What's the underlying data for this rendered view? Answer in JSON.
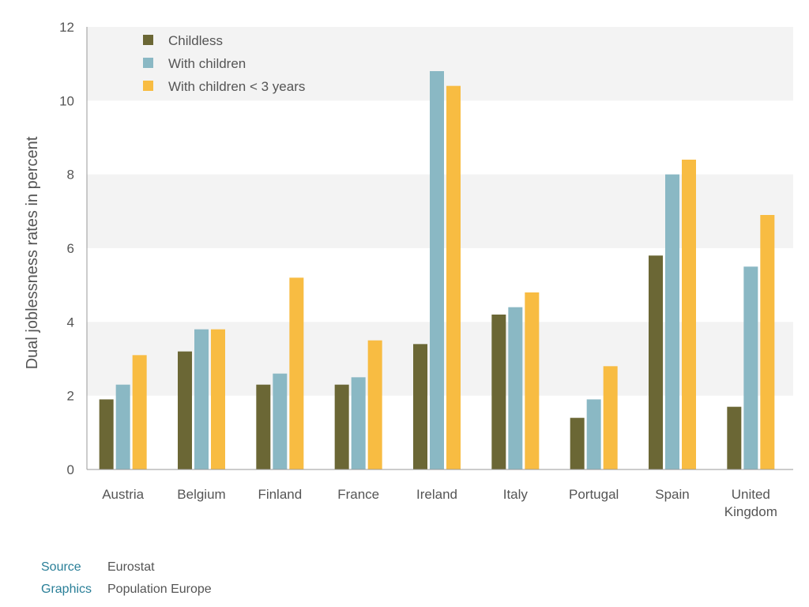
{
  "chart_data": {
    "type": "bar",
    "ylabel": "Dual joblessness rates in percent",
    "xlabel": "",
    "ylim": [
      0,
      12
    ],
    "yticks": [
      0,
      2,
      4,
      6,
      8,
      10,
      12
    ],
    "grid": "alternating horizontal bands",
    "legend_position": "top-left",
    "categories": [
      [
        "Austria"
      ],
      [
        "Belgium"
      ],
      [
        "Finland"
      ],
      [
        "France"
      ],
      [
        "Ireland"
      ],
      [
        "Italy"
      ],
      [
        "Portugal"
      ],
      [
        "Spain"
      ],
      [
        "United",
        "Kingdom"
      ]
    ],
    "series": [
      {
        "name": "Childless",
        "color": "#6b6735",
        "values": [
          1.9,
          3.2,
          2.3,
          2.3,
          3.4,
          4.2,
          1.4,
          5.8,
          1.7
        ]
      },
      {
        "name": "With children",
        "color": "#8ab8c4",
        "values": [
          2.3,
          3.8,
          2.6,
          2.5,
          10.8,
          4.4,
          1.9,
          8.0,
          5.5
        ]
      },
      {
        "name": "With children < 3 years",
        "color": "#f8bc42",
        "values": [
          3.1,
          3.8,
          5.2,
          3.5,
          10.4,
          4.8,
          2.8,
          8.4,
          6.9
        ]
      }
    ]
  },
  "footer": {
    "source_label": "Source",
    "source_value": "Eurostat",
    "graphics_label": "Graphics",
    "graphics_value": "Population Europe"
  }
}
